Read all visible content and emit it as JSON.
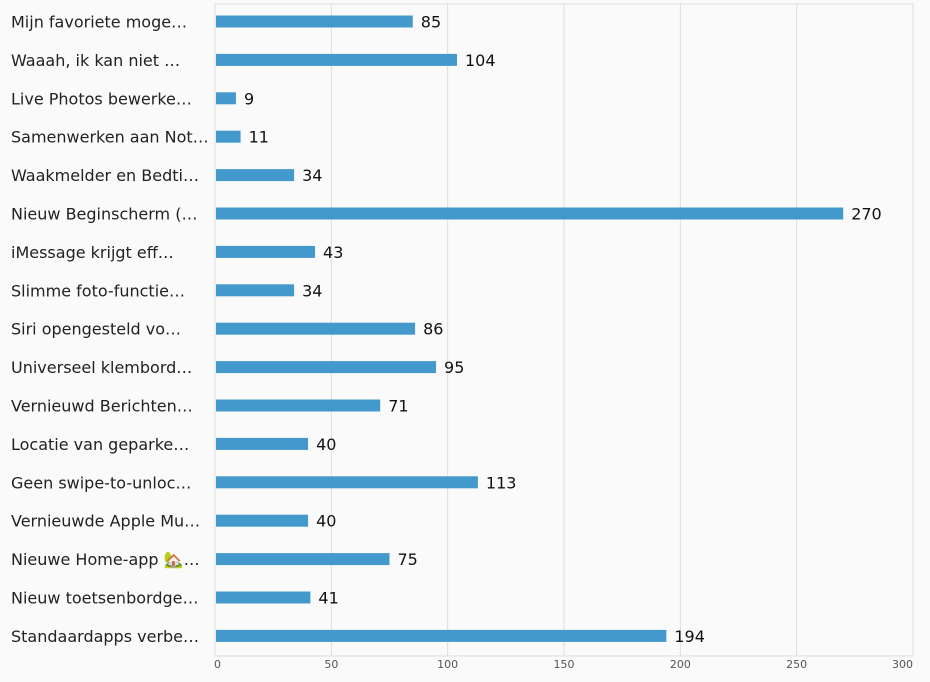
{
  "chart_data": {
    "type": "bar",
    "orientation": "horizontal",
    "title": "",
    "xlabel": "",
    "ylabel": "",
    "xlim": [
      0,
      300
    ],
    "x_ticks": [
      "0",
      "50",
      "100",
      "150",
      "200",
      "250",
      "300"
    ],
    "grid": true,
    "legend": "none",
    "bar_color": "#4499cc",
    "grid_color": "#dddddd",
    "categories": [
      "Mijn favoriete moge…",
      "Waaah, ik kan niet …",
      "Live Photos bewerke…",
      "Samenwerken aan Not…",
      "Waakmelder en Bedti…",
      "Nieuw Beginscherm (…",
      "iMessage krijgt eff…",
      "Slimme foto-functie…",
      "Siri opengesteld vo…",
      "Universeel klembord…",
      "Vernieuwd Berichten…",
      "Locatie van geparke…",
      "Geen swipe-to-unloc…",
      "Vernieuwde Apple Mu…",
      "Nieuwe Home-app 🏡…",
      "Nieuw toetsenbordge…",
      "Standaardapps verbe…"
    ],
    "values": [
      85,
      104,
      9,
      11,
      34,
      270,
      43,
      34,
      86,
      95,
      71,
      40,
      113,
      40,
      75,
      41,
      194
    ]
  }
}
